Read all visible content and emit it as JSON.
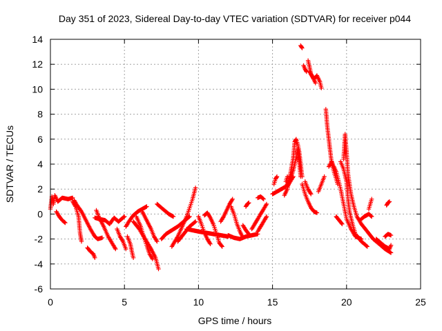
{
  "chart_data": {
    "type": "scatter",
    "title": "Day 351 of 2023, Sidereal Day-to-day VTEC variation (SDTVAR) for receiver p044",
    "xlabel": "GPS time / hours",
    "ylabel": "SDTVAR / TECUs",
    "xlim": [
      0,
      25
    ],
    "ylim": [
      -6,
      14
    ],
    "xticks": [
      0,
      5,
      10,
      15,
      20,
      25
    ],
    "yticks": [
      -6,
      -4,
      -2,
      0,
      2,
      4,
      6,
      8,
      10,
      12,
      14
    ],
    "grid": true,
    "marker": "+",
    "color": "#ff0000",
    "series": [
      {
        "name": "SDTVAR",
        "tracks": [
          [
            [
              0.0,
              0.4
            ],
            [
              0.1,
              1.4
            ],
            [
              0.2,
              0.8
            ],
            [
              0.3,
              1.5
            ],
            [
              0.5,
              1.0
            ],
            [
              0.8,
              1.3
            ],
            [
              1.2,
              1.2
            ],
            [
              1.5,
              1.3
            ]
          ],
          [
            [
              0.4,
              0.2
            ],
            [
              0.6,
              -0.2
            ],
            [
              0.8,
              -0.5
            ],
            [
              1.0,
              -0.7
            ]
          ],
          [
            [
              1.5,
              1.0
            ],
            [
              1.7,
              0.6
            ],
            [
              1.9,
              -0.2
            ],
            [
              2.0,
              -1.5
            ],
            [
              2.1,
              -2.2
            ]
          ],
          [
            [
              1.6,
              1.1
            ],
            [
              1.8,
              0.7
            ],
            [
              2.1,
              0.2
            ],
            [
              2.4,
              -0.5
            ],
            [
              2.7,
              -1.2
            ],
            [
              3.0,
              -1.8
            ],
            [
              3.2,
              -2.0
            ],
            [
              3.5,
              -1.9
            ]
          ],
          [
            [
              2.5,
              -2.7
            ],
            [
              2.7,
              -3.0
            ],
            [
              2.9,
              -3.2
            ],
            [
              3.0,
              -3.5
            ]
          ],
          [
            [
              3.0,
              -0.3
            ],
            [
              3.3,
              -0.4
            ],
            [
              3.7,
              -0.5
            ],
            [
              4.0,
              -0.8
            ],
            [
              4.3,
              -0.3
            ],
            [
              4.6,
              -0.6
            ],
            [
              5.0,
              -0.2
            ]
          ],
          [
            [
              3.1,
              0.3
            ],
            [
              3.3,
              -0.3
            ],
            [
              3.6,
              -1.0
            ],
            [
              3.9,
              -1.8
            ],
            [
              4.2,
              -2.4
            ],
            [
              4.4,
              -2.8
            ]
          ],
          [
            [
              4.5,
              -1.2
            ],
            [
              4.7,
              -1.8
            ],
            [
              4.9,
              -2.2
            ],
            [
              5.1,
              -2.8
            ]
          ],
          [
            [
              5.1,
              -1.0
            ],
            [
              5.3,
              -0.6
            ],
            [
              5.6,
              -0.1
            ],
            [
              5.9,
              0.2
            ],
            [
              6.2,
              0.4
            ],
            [
              6.5,
              0.6
            ]
          ],
          [
            [
              5.2,
              -1.8
            ],
            [
              5.4,
              -2.4
            ],
            [
              5.5,
              -3.0
            ],
            [
              5.6,
              -3.5
            ]
          ],
          [
            [
              5.6,
              -0.6
            ],
            [
              6.0,
              -1.2
            ],
            [
              6.4,
              -2.0
            ],
            [
              6.8,
              -2.8
            ],
            [
              7.1,
              -3.5
            ],
            [
              7.3,
              -4.4
            ]
          ],
          [
            [
              5.8,
              -0.2
            ],
            [
              6.1,
              -1.0
            ],
            [
              6.3,
              -1.8
            ],
            [
              6.5,
              -2.5
            ],
            [
              6.7,
              -3.2
            ],
            [
              6.9,
              -3.6
            ]
          ],
          [
            [
              6.2,
              0.2
            ],
            [
              6.5,
              -0.5
            ],
            [
              6.8,
              -1.2
            ],
            [
              7.0,
              -1.8
            ],
            [
              7.2,
              -2.2
            ]
          ],
          [
            [
              7.2,
              0.8
            ],
            [
              7.6,
              0.4
            ],
            [
              8.0,
              0.0
            ],
            [
              8.3,
              -0.2
            ]
          ],
          [
            [
              7.5,
              -2.0
            ],
            [
              7.8,
              -1.6
            ],
            [
              8.2,
              -1.3
            ],
            [
              8.6,
              -1.0
            ],
            [
              9.0,
              -0.6
            ],
            [
              9.4,
              -0.2
            ]
          ],
          [
            [
              8.2,
              -2.6
            ],
            [
              8.6,
              -1.8
            ],
            [
              8.9,
              -1.0
            ],
            [
              9.2,
              -0.2
            ],
            [
              9.4,
              0.5
            ],
            [
              9.6,
              1.2
            ],
            [
              9.8,
              2.1
            ]
          ],
          [
            [
              8.6,
              -2.2
            ],
            [
              9.0,
              -1.6
            ],
            [
              9.4,
              -1.0
            ],
            [
              9.8,
              -0.6
            ]
          ],
          [
            [
              9.2,
              -1.2
            ],
            [
              9.6,
              -1.3
            ],
            [
              10.0,
              -1.4
            ],
            [
              10.5,
              -1.5
            ],
            [
              11.0,
              -1.6
            ],
            [
              11.5,
              -1.7
            ],
            [
              12.0,
              -1.8
            ]
          ],
          [
            [
              10.0,
              -0.2
            ],
            [
              10.2,
              -0.8
            ],
            [
              10.4,
              -1.5
            ],
            [
              10.6,
              -2.0
            ],
            [
              10.8,
              -2.4
            ]
          ],
          [
            [
              10.4,
              -0.1
            ],
            [
              10.6,
              0.1
            ],
            [
              10.8,
              -0.3
            ],
            [
              11.0,
              -0.8
            ],
            [
              11.2,
              -1.5
            ],
            [
              11.4,
              -2.3
            ],
            [
              11.6,
              -2.6
            ]
          ],
          [
            [
              11.5,
              -0.6
            ],
            [
              11.7,
              -0.2
            ],
            [
              11.9,
              0.3
            ],
            [
              12.1,
              0.8
            ],
            [
              12.3,
              1.2
            ]
          ],
          [
            [
              12.2,
              0.6
            ],
            [
              12.4,
              0.0
            ],
            [
              12.6,
              -0.8
            ],
            [
              12.8,
              -1.4
            ],
            [
              13.0,
              -1.9
            ]
          ],
          [
            [
              12.0,
              -1.7
            ],
            [
              12.4,
              -1.9
            ],
            [
              12.8,
              -2.0
            ],
            [
              13.2,
              -1.8
            ],
            [
              13.6,
              -1.7
            ],
            [
              14.0,
              -1.6
            ]
          ],
          [
            [
              13.0,
              -0.9
            ],
            [
              13.2,
              -1.3
            ],
            [
              13.4,
              -1.6
            ]
          ],
          [
            [
              13.2,
              0.6
            ],
            [
              13.3,
              0.8
            ],
            [
              13.4,
              0.9
            ]
          ],
          [
            [
              13.6,
              -1.2
            ],
            [
              13.8,
              -0.8
            ],
            [
              14.0,
              -0.4
            ],
            [
              14.2,
              0.0
            ],
            [
              14.4,
              0.4
            ],
            [
              14.6,
              0.8
            ]
          ],
          [
            [
              14.0,
              1.3
            ],
            [
              14.2,
              1.4
            ],
            [
              14.4,
              1.2
            ]
          ],
          [
            [
              14.0,
              -1.4
            ],
            [
              14.2,
              -1.0
            ],
            [
              14.4,
              -0.6
            ],
            [
              14.6,
              -0.2
            ]
          ],
          [
            [
              15.0,
              1.6
            ],
            [
              15.3,
              1.8
            ],
            [
              15.6,
              2.0
            ],
            [
              15.9,
              2.2
            ],
            [
              16.2,
              2.8
            ],
            [
              16.4,
              3.5
            ],
            [
              16.6,
              4.5
            ],
            [
              16.7,
              5.2
            ],
            [
              16.8,
              4.2
            ],
            [
              16.9,
              3.0
            ]
          ],
          [
            [
              15.1,
              2.4
            ],
            [
              15.2,
              2.8
            ],
            [
              15.3,
              3.0
            ]
          ],
          [
            [
              15.8,
              1.5
            ],
            [
              16.0,
              2.0
            ],
            [
              16.2,
              3.2
            ],
            [
              16.4,
              4.5
            ],
            [
              16.5,
              5.8
            ],
            [
              16.6,
              6.0
            ],
            [
              16.7,
              5.6
            ],
            [
              16.8,
              5.0
            ],
            [
              16.9,
              4.0
            ],
            [
              17.0,
              3.0
            ]
          ],
          [
            [
              15.9,
              2.6
            ],
            [
              16.0,
              3.0
            ]
          ],
          [
            [
              16.0,
              2.2
            ],
            [
              16.2,
              2.6
            ],
            [
              16.4,
              3.0
            ]
          ],
          [
            [
              16.9,
              13.5
            ],
            [
              17.0,
              13.3
            ]
          ],
          [
            [
              17.1,
              11.9
            ],
            [
              17.2,
              11.6
            ],
            [
              17.3,
              11.4
            ]
          ],
          [
            [
              17.4,
              12.3
            ],
            [
              17.5,
              11.8
            ],
            [
              17.6,
              11.2
            ],
            [
              17.8,
              10.8
            ],
            [
              18.0,
              11.1
            ],
            [
              18.2,
              10.6
            ],
            [
              18.3,
              10.1
            ]
          ],
          [
            [
              17.5,
              11.4
            ],
            [
              17.7,
              11.0
            ],
            [
              17.9,
              10.5
            ]
          ],
          [
            [
              17.0,
              2.4
            ],
            [
              17.2,
              1.6
            ],
            [
              17.4,
              1.0
            ],
            [
              17.6,
              0.5
            ],
            [
              17.8,
              0.2
            ],
            [
              18.0,
              0.1
            ]
          ],
          [
            [
              17.2,
              2.6
            ],
            [
              17.4,
              2.0
            ],
            [
              17.6,
              1.6
            ]
          ],
          [
            [
              18.1,
              1.8
            ],
            [
              18.3,
              2.4
            ],
            [
              18.5,
              3.0
            ]
          ],
          [
            [
              18.6,
              8.4
            ],
            [
              18.7,
              7.0
            ],
            [
              18.8,
              6.0
            ],
            [
              18.9,
              5.0
            ],
            [
              19.0,
              4.0
            ],
            [
              19.2,
              3.2
            ],
            [
              19.4,
              2.4
            ]
          ],
          [
            [
              18.8,
              3.8
            ],
            [
              19.0,
              4.2
            ],
            [
              19.1,
              3.9
            ],
            [
              19.3,
              3.4
            ],
            [
              19.6,
              2.0
            ],
            [
              19.8,
              0.8
            ],
            [
              20.0,
              -0.4
            ],
            [
              20.3,
              -1.2
            ],
            [
              20.6,
              -1.8
            ],
            [
              21.0,
              -2.0
            ]
          ],
          [
            [
              19.6,
              4.2
            ],
            [
              19.8,
              3.6
            ],
            [
              20.0,
              2.6
            ],
            [
              20.1,
              1.2
            ],
            [
              20.2,
              0.2
            ],
            [
              20.4,
              -0.8
            ],
            [
              20.6,
              -1.6
            ],
            [
              21.0,
              -2.2
            ],
            [
              21.4,
              -2.6
            ]
          ],
          [
            [
              19.8,
              4.4
            ],
            [
              19.9,
              6.4
            ],
            [
              20.0,
              5.0
            ],
            [
              20.1,
              3.2
            ],
            [
              20.3,
              1.6
            ],
            [
              20.5,
              0.6
            ],
            [
              20.7,
              -0.2
            ],
            [
              21.0,
              -0.8
            ],
            [
              21.4,
              -1.4
            ],
            [
              21.8,
              -2.0
            ],
            [
              22.2,
              -2.4
            ],
            [
              22.6,
              -2.8
            ],
            [
              23.0,
              -3.1
            ]
          ],
          [
            [
              19.3,
              -0.2
            ],
            [
              19.5,
              -0.5
            ],
            [
              19.7,
              -0.8
            ]
          ],
          [
            [
              20.9,
              -0.5
            ],
            [
              21.2,
              -0.2
            ],
            [
              21.5,
              0.0
            ],
            [
              21.7,
              -0.2
            ]
          ],
          [
            [
              21.5,
              0.4
            ],
            [
              21.6,
              0.8
            ],
            [
              21.7,
              1.2
            ]
          ],
          [
            [
              22.0,
              -2.0
            ],
            [
              22.3,
              -2.3
            ],
            [
              22.6,
              -2.6
            ],
            [
              22.9,
              -2.8
            ],
            [
              23.0,
              -2.5
            ]
          ],
          [
            [
              22.6,
              -1.8
            ],
            [
              22.8,
              -1.6
            ],
            [
              23.0,
              -1.7
            ]
          ],
          [
            [
              22.7,
              0.7
            ],
            [
              22.8,
              0.9
            ],
            [
              22.9,
              1.0
            ]
          ]
        ]
      }
    ]
  }
}
